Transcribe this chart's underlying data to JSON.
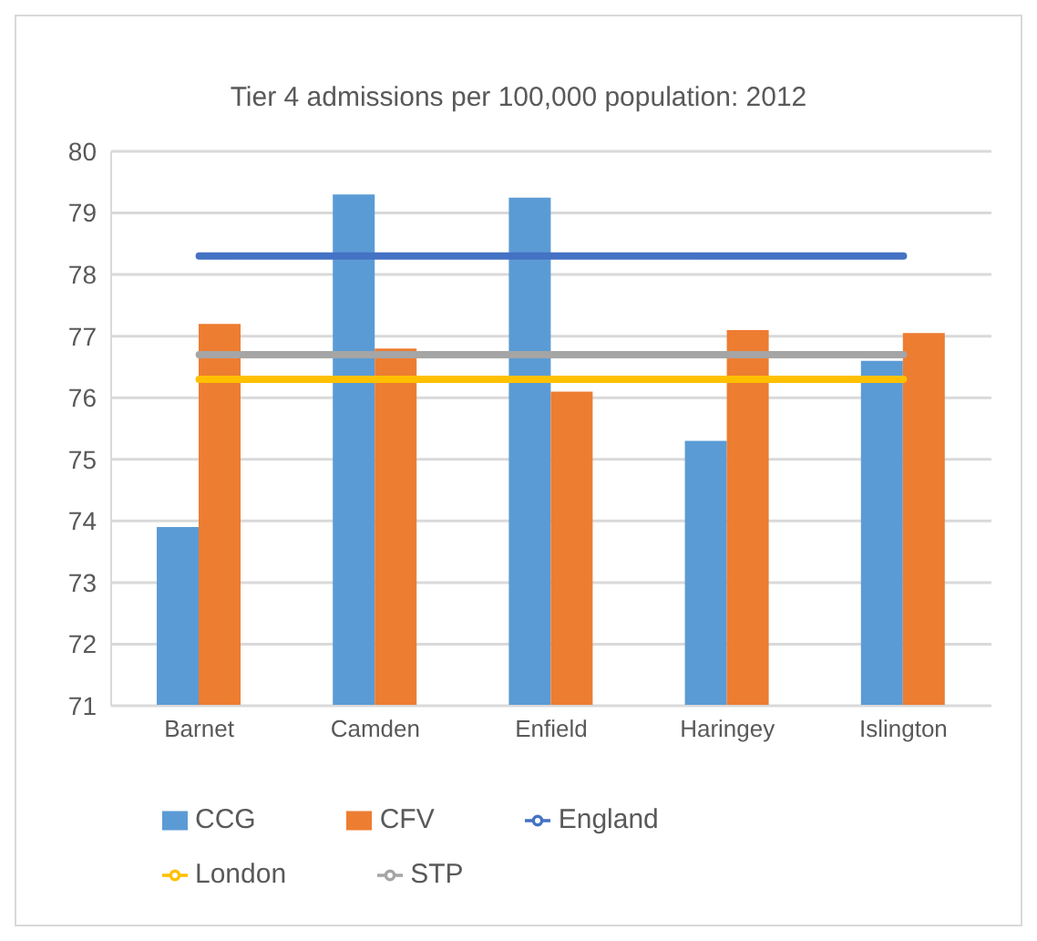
{
  "chart_data": {
    "type": "bar",
    "title": "Tier 4 admissions per 100,000 population: 2012",
    "categories": [
      "Barnet",
      "Camden",
      "Enfield",
      "Haringey",
      "Islington"
    ],
    "series": [
      {
        "name": "CCG",
        "color": "#5b9bd5",
        "values": [
          73.9,
          79.3,
          79.25,
          75.3,
          76.6
        ]
      },
      {
        "name": "CFV",
        "color": "#ed7d31",
        "values": [
          77.2,
          76.8,
          76.1,
          77.1,
          77.05
        ]
      },
      {
        "name": "STP",
        "type": "line",
        "color": "#a5a5a5",
        "values": [
          76.7,
          76.7,
          76.7,
          76.7,
          76.7
        ]
      },
      {
        "name": "London",
        "type": "line",
        "color": "#ffc000",
        "values": [
          76.3,
          76.3,
          76.3,
          76.3,
          76.3
        ]
      },
      {
        "name": "England",
        "type": "line",
        "color": "#4472c4",
        "values": [
          78.3,
          78.3,
          78.3,
          78.3,
          78.3
        ]
      }
    ],
    "ylim": [
      71,
      80
    ],
    "yticks": [
      71,
      72,
      73,
      74,
      75,
      76,
      77,
      78,
      79,
      80
    ],
    "grid": "y",
    "legend": "bottom",
    "marker": "none"
  }
}
